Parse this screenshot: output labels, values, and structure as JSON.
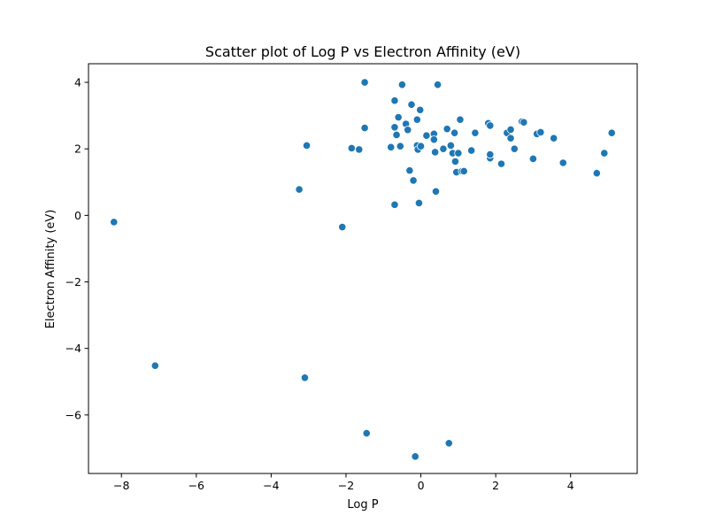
{
  "chart_data": {
    "type": "scatter",
    "title": "Scatter plot of Log P vs Electron Affinity (eV)",
    "xlabel": "Log P",
    "ylabel": "Electron Affinity (eV)",
    "xlim": [
      -8.88,
      5.78
    ],
    "ylim": [
      -7.76,
      4.56
    ],
    "xticks": [
      -8,
      -6,
      -4,
      -2,
      0,
      2,
      4
    ],
    "yticks": [
      -6,
      -4,
      -2,
      0,
      2,
      4
    ],
    "xtick_labels": [
      "−8",
      "−6",
      "−4",
      "−2",
      "0",
      "2",
      "4"
    ],
    "ytick_labels": [
      "−6",
      "−4",
      "−2",
      "0",
      "2",
      "4"
    ],
    "grid": false,
    "marker_color": "#1f77b4",
    "points": [
      {
        "x": -8.2,
        "y": -0.2
      },
      {
        "x": -7.1,
        "y": -4.52
      },
      {
        "x": -3.25,
        "y": 0.78
      },
      {
        "x": -3.1,
        "y": -4.88
      },
      {
        "x": -3.05,
        "y": 2.1
      },
      {
        "x": -2.1,
        "y": -0.35
      },
      {
        "x": -1.85,
        "y": 2.02
      },
      {
        "x": -1.65,
        "y": 1.98
      },
      {
        "x": -1.5,
        "y": 4.0
      },
      {
        "x": -1.5,
        "y": 2.63
      },
      {
        "x": -1.45,
        "y": -6.55
      },
      {
        "x": -0.8,
        "y": 2.05
      },
      {
        "x": -0.7,
        "y": 3.45
      },
      {
        "x": -0.7,
        "y": 2.65
      },
      {
        "x": -0.7,
        "y": 0.32
      },
      {
        "x": -0.65,
        "y": 2.42
      },
      {
        "x": -0.6,
        "y": 2.95
      },
      {
        "x": -0.55,
        "y": 2.08
      },
      {
        "x": -0.5,
        "y": 3.93
      },
      {
        "x": -0.4,
        "y": 2.75
      },
      {
        "x": -0.35,
        "y": 2.57
      },
      {
        "x": -0.3,
        "y": 1.35
      },
      {
        "x": -0.25,
        "y": 3.33
      },
      {
        "x": -0.2,
        "y": 1.05
      },
      {
        "x": -0.15,
        "y": -7.25
      },
      {
        "x": -0.1,
        "y": 2.88
      },
      {
        "x": -0.1,
        "y": 2.1
      },
      {
        "x": -0.08,
        "y": 1.98
      },
      {
        "x": -0.05,
        "y": 0.37
      },
      {
        "x": -0.02,
        "y": 3.17
      },
      {
        "x": 0.0,
        "y": 2.08
      },
      {
        "x": 0.15,
        "y": 2.4
      },
      {
        "x": 0.35,
        "y": 2.45
      },
      {
        "x": 0.35,
        "y": 2.28
      },
      {
        "x": 0.38,
        "y": 1.9
      },
      {
        "x": 0.4,
        "y": 0.72
      },
      {
        "x": 0.45,
        "y": 3.93
      },
      {
        "x": 0.6,
        "y": 2.0
      },
      {
        "x": 0.7,
        "y": 2.6
      },
      {
        "x": 0.75,
        "y": -6.85
      },
      {
        "x": 0.8,
        "y": 2.1
      },
      {
        "x": 0.85,
        "y": 1.87
      },
      {
        "x": 0.9,
        "y": 2.48
      },
      {
        "x": 0.92,
        "y": 1.62
      },
      {
        "x": 0.95,
        "y": 1.3
      },
      {
        "x": 1.0,
        "y": 1.87
      },
      {
        "x": 1.05,
        "y": 2.88
      },
      {
        "x": 1.1,
        "y": 1.33
      },
      {
        "x": 1.15,
        "y": 1.33
      },
      {
        "x": 1.35,
        "y": 1.95
      },
      {
        "x": 1.45,
        "y": 2.48
      },
      {
        "x": 1.8,
        "y": 2.77
      },
      {
        "x": 1.85,
        "y": 2.7
      },
      {
        "x": 1.85,
        "y": 1.72
      },
      {
        "x": 1.85,
        "y": 1.83
      },
      {
        "x": 2.15,
        "y": 1.55
      },
      {
        "x": 2.3,
        "y": 2.48
      },
      {
        "x": 2.4,
        "y": 2.58
      },
      {
        "x": 2.4,
        "y": 2.32
      },
      {
        "x": 2.5,
        "y": 2.0
      },
      {
        "x": 2.7,
        "y": 2.82
      },
      {
        "x": 2.75,
        "y": 2.8
      },
      {
        "x": 3.0,
        "y": 1.7
      },
      {
        "x": 3.1,
        "y": 2.45
      },
      {
        "x": 3.2,
        "y": 2.5
      },
      {
        "x": 3.55,
        "y": 2.32
      },
      {
        "x": 3.8,
        "y": 1.58
      },
      {
        "x": 4.7,
        "y": 1.27
      },
      {
        "x": 4.9,
        "y": 1.87
      },
      {
        "x": 5.1,
        "y": 2.48
      }
    ]
  }
}
